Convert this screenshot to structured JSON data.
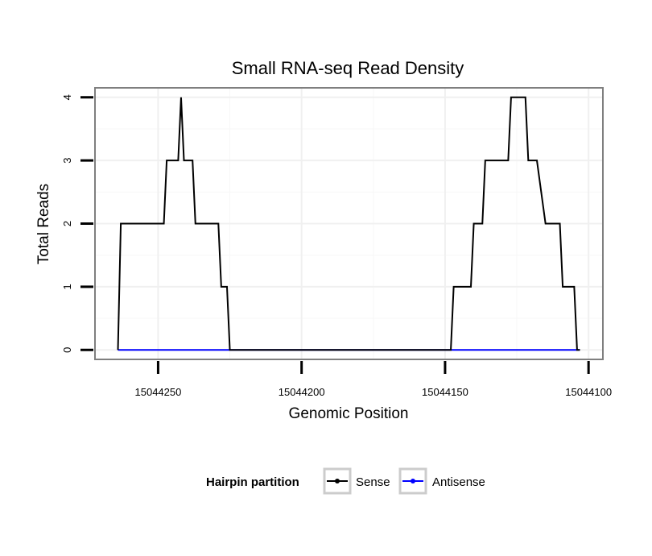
{
  "chart_data": {
    "type": "line",
    "title": "Small RNA-seq Read Density",
    "xlabel": "Genomic Position",
    "ylabel": "Total Reads",
    "x_reversed": true,
    "xlim": [
      15044272,
      15044095
    ],
    "ylim": [
      -0.15,
      4.15
    ],
    "xticks": [
      15044250,
      15044200,
      15044150,
      15044100
    ],
    "xtick_labels": [
      "15044250",
      "15044200",
      "15044150",
      "15044100"
    ],
    "yticks": [
      0,
      1,
      2,
      3,
      4
    ],
    "ytick_labels": [
      "0",
      "1",
      "2",
      "3",
      "4"
    ],
    "grid": true,
    "legend": {
      "title": "Hairpin partition",
      "placement": "bottom",
      "entries": [
        "Sense",
        "Antisense"
      ]
    },
    "series": [
      {
        "name": "Sense",
        "color": "#000000",
        "x": [
          15044264,
          15044263,
          15044248,
          15044247,
          15044243,
          15044242,
          15044241,
          15044240,
          15044238,
          15044237,
          15044229,
          15044228,
          15044226,
          15044225,
          15044220,
          15044148,
          15044147,
          15044141,
          15044140,
          15044137,
          15044136,
          15044128,
          15044127,
          15044122,
          15044121,
          15044119,
          15044118,
          15044115,
          15044114,
          15044110,
          15044109,
          15044105,
          15044104,
          15044103
        ],
        "values": [
          0,
          2,
          2,
          3,
          3,
          4,
          3,
          3,
          3,
          2,
          2,
          1,
          1,
          0,
          0,
          0,
          1,
          1,
          2,
          2,
          3,
          3,
          4,
          4,
          3,
          3,
          3,
          2,
          2,
          2,
          1,
          1,
          0,
          0
        ]
      },
      {
        "name": "Antisense",
        "color": "#0000ff",
        "x": [
          15044264,
          15044103
        ],
        "values": [
          0,
          0
        ]
      }
    ]
  }
}
